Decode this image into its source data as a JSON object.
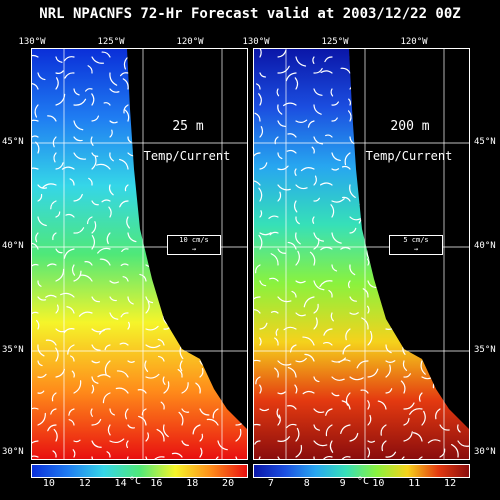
{
  "title": "NRL NPACNFS 72-Hr Forecast valid at 2003/12/22 00Z",
  "longitude_labels": [
    "130°W",
    "125°W",
    "120°W"
  ],
  "latitude_labels": [
    "45°N",
    "40°N",
    "35°N",
    "30°N"
  ],
  "panels": [
    {
      "depth": "25 m",
      "field_label": "Temp/Current",
      "scale_label": "10 cm/s",
      "colorbar_ticks": [
        "10",
        "12",
        "14",
        "16",
        "18",
        "20"
      ],
      "unit": "°C",
      "colors": [
        "#0a2fd8",
        "#1f7cf2",
        "#35d6e8",
        "#4fe879",
        "#f5f52a",
        "#ff8c1a",
        "#e81010"
      ]
    },
    {
      "depth": "200 m",
      "field_label": "Temp/Current",
      "scale_label": "5 cm/s",
      "colorbar_ticks": [
        "7",
        "8",
        "9",
        "10",
        "11",
        "12"
      ],
      "unit": "°C",
      "colors": [
        "#0a16a8",
        "#1b4ee0",
        "#27a6f0",
        "#36e0b8",
        "#8af23e",
        "#f5d21c",
        "#e43a10",
        "#8a0d0d"
      ]
    }
  ]
}
